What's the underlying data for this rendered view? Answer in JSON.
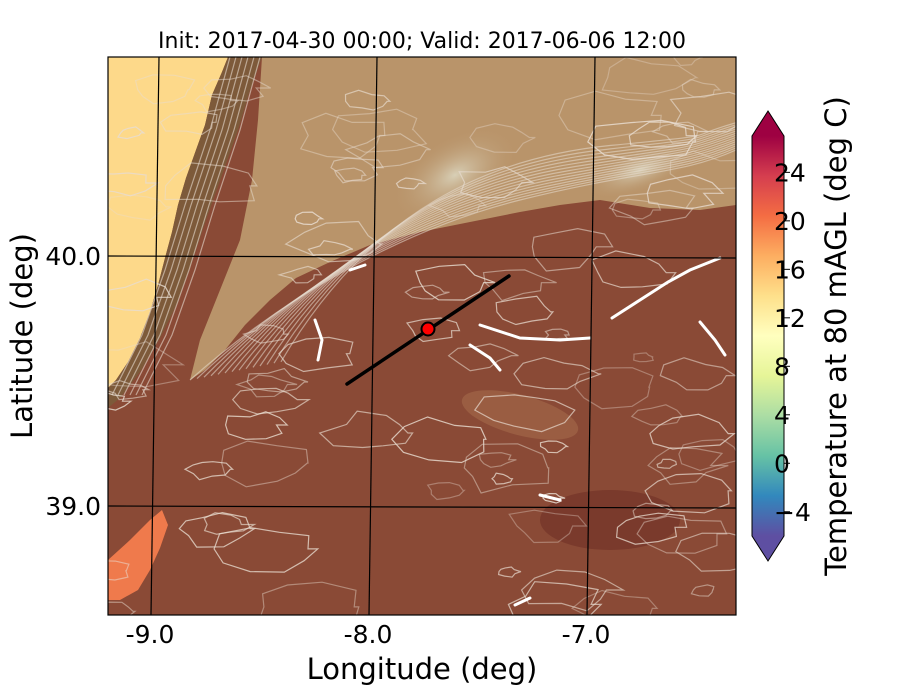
{
  "title": "Init: 2017-04-30 00:00; Valid: 2017-06-06 12:00",
  "map": {
    "xlabel": "Longitude (deg)",
    "ylabel": "Latitude (deg)",
    "x_ticks": [
      {
        "value": -9.0,
        "label": "-9.0"
      },
      {
        "value": -8.0,
        "label": "-8.0"
      },
      {
        "value": -7.0,
        "label": "-7.0"
      }
    ],
    "y_ticks": [
      {
        "value": 40.0,
        "label": "40.0"
      },
      {
        "value": 39.0,
        "label": "39.0"
      }
    ],
    "marker_color": "#ff0000",
    "transect_color": "#000000",
    "ocean_color": "#fdd98a",
    "land_color": "#8a4a36",
    "highland_color": "#b9946a",
    "contour_color": "#e8dcd0"
  },
  "colorbar": {
    "label": "Temperature at 80 mAGL (deg C)",
    "ticks": [
      {
        "value": -4,
        "label": "−4"
      },
      {
        "value": 0,
        "label": "0"
      },
      {
        "value": 4,
        "label": "4"
      },
      {
        "value": 8,
        "label": "8"
      },
      {
        "value": 12,
        "label": "12"
      },
      {
        "value": 16,
        "label": "16"
      },
      {
        "value": 20,
        "label": "20"
      },
      {
        "value": 24,
        "label": "24"
      }
    ],
    "range": [
      -6,
      27
    ],
    "extend": "both",
    "colors": [
      "#5e4fa2",
      "#3288bd",
      "#66c2a5",
      "#abdda4",
      "#e6f598",
      "#ffffbf",
      "#fee08b",
      "#fdae61",
      "#f46d43",
      "#d53e4f",
      "#9e0142"
    ]
  }
}
